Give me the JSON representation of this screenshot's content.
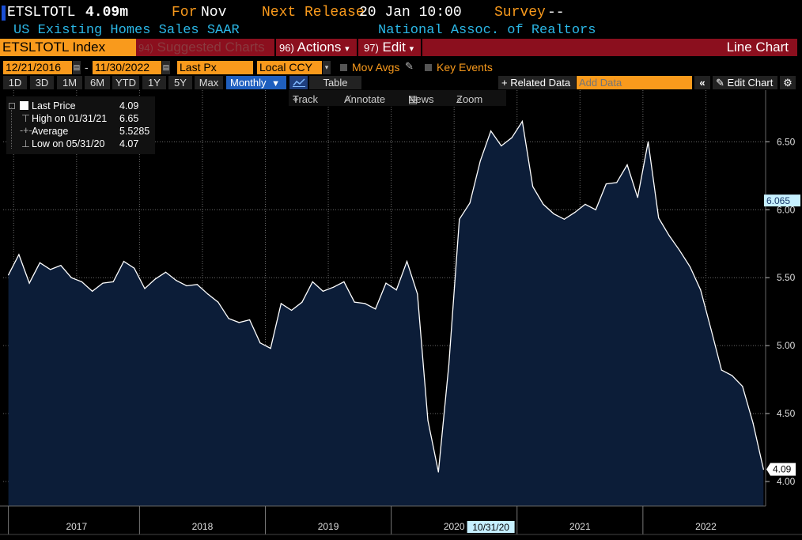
{
  "header": {
    "ticker": "ETSLTOTL",
    "last_value": "4.09m",
    "for_label": "For",
    "for_period": "Nov",
    "next_release_label": "Next Release",
    "next_release_value": "20 Jan 10:00",
    "survey_label": "Survey",
    "survey_value": "--",
    "description": "US Existing Homes Sales SAAR",
    "source": "National Assoc. of Realtors"
  },
  "menubar": {
    "security": "ETSLTOTL Index",
    "suggested_num": "94)",
    "suggested": "Suggested Charts",
    "actions_num": "96)",
    "actions": "Actions",
    "edit_num": "97)",
    "edit": "Edit",
    "chart_type": "Line Chart",
    "dropdown_arrow": "▾"
  },
  "toolbar": {
    "start_date": "12/21/2016",
    "date_separator": "-",
    "end_date": "11/30/2022",
    "field": "Last Px",
    "currency": "Local CCY",
    "mov_avgs": "Mov Avgs",
    "key_events": "Key Events",
    "periods": [
      "1D",
      "3D",
      "1M",
      "6M",
      "YTD",
      "1Y",
      "5Y",
      "Max"
    ],
    "frequency": "Monthly",
    "table_label": "Table",
    "related_data": "+ Related Data",
    "add_data_placeholder": "Add Data",
    "edit_chart": "Edit Chart",
    "track": "Track",
    "annotate": "Annotate",
    "news": "News",
    "zoom": "Zoom"
  },
  "legend": {
    "last_price_label": "Last Price",
    "last_price_value": "4.09",
    "high_label": "High on 01/31/21",
    "high_value": "6.65",
    "average_label": "Average",
    "average_value": "5.5285",
    "low_label": "Low on 05/31/20",
    "low_value": "4.07"
  },
  "colors": {
    "orange": "#f99a1c",
    "cyan": "#2bb7e6",
    "red_bar": "#8b0f1e",
    "area_fill": "#0c1d38",
    "line": "#ffffff"
  },
  "chart_data": {
    "type": "area",
    "title": "US Existing Homes Sales SAAR",
    "xlabel": "",
    "ylabel": "",
    "unit": "millions",
    "ylim": [
      3.82,
      6.88
    ],
    "xlim": [
      -0.5,
      72.2
    ],
    "yticks": [
      4.0,
      4.5,
      5.0,
      5.5,
      6.0,
      6.5
    ],
    "ytick_labels": [
      "4.00",
      "4.50",
      "5.00",
      "5.50",
      "6.00",
      "6.50"
    ],
    "year_labels": [
      "2017",
      "2018",
      "2019",
      "2020",
      "2021",
      "2022"
    ],
    "crosshair_date": "10/31/20",
    "crosshair_index": 46,
    "current_marker_value": 6.065,
    "current_marker_label": "6.065",
    "last_label": "4.09",
    "grid": true,
    "series": [
      {
        "name": "ETSLTOTL Index",
        "start": "12/31/2016",
        "frequency": "Monthly",
        "values": [
          5.52,
          5.67,
          5.46,
          5.61,
          5.56,
          5.59,
          5.5,
          5.47,
          5.4,
          5.46,
          5.47,
          5.62,
          5.57,
          5.42,
          5.49,
          5.54,
          5.48,
          5.44,
          5.45,
          5.38,
          5.32,
          5.2,
          5.17,
          5.19,
          5.02,
          4.98,
          5.31,
          5.26,
          5.32,
          5.47,
          5.4,
          5.43,
          5.47,
          5.32,
          5.31,
          5.27,
          5.46,
          5.41,
          5.62,
          5.38,
          4.45,
          4.07,
          4.86,
          5.93,
          6.05,
          6.36,
          6.58,
          6.47,
          6.53,
          6.65,
          6.17,
          6.04,
          5.97,
          5.93,
          5.98,
          6.04,
          6.0,
          6.19,
          6.2,
          6.33,
          6.09,
          6.5,
          5.94,
          5.81,
          5.7,
          5.58,
          5.41,
          5.12,
          4.82,
          4.78,
          4.7,
          4.43,
          4.09
        ]
      }
    ]
  }
}
